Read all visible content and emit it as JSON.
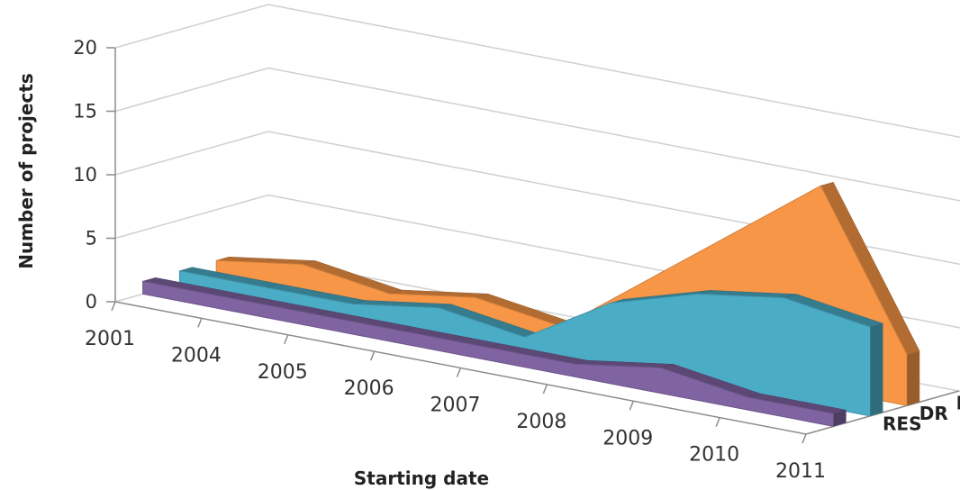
{
  "chart_data": {
    "type": "area",
    "categories": [
      "2001",
      "2004",
      "2005",
      "2006",
      "2007",
      "2008",
      "2009",
      "2010",
      "2011"
    ],
    "series": [
      {
        "name": "RES",
        "values": [
          1,
          1,
          1,
          1,
          1,
          1,
          2,
          1,
          1
        ],
        "color": "#8064A2"
      },
      {
        "name": "DR",
        "values": [
          1,
          1,
          1,
          2,
          1,
          5,
          7,
          8,
          7
        ],
        "color": "#4BACC6"
      },
      {
        "name": "DER",
        "values": [
          1,
          2,
          1,
          2,
          1,
          6,
          11,
          16,
          4
        ],
        "color": "#F79646"
      }
    ],
    "title": "",
    "xlabel": "Starting date",
    "ylabel": "Number of projects",
    "ylim": [
      0,
      20
    ],
    "yticks": [
      0,
      5,
      10,
      15,
      20
    ],
    "grid": true,
    "view": "3d"
  }
}
